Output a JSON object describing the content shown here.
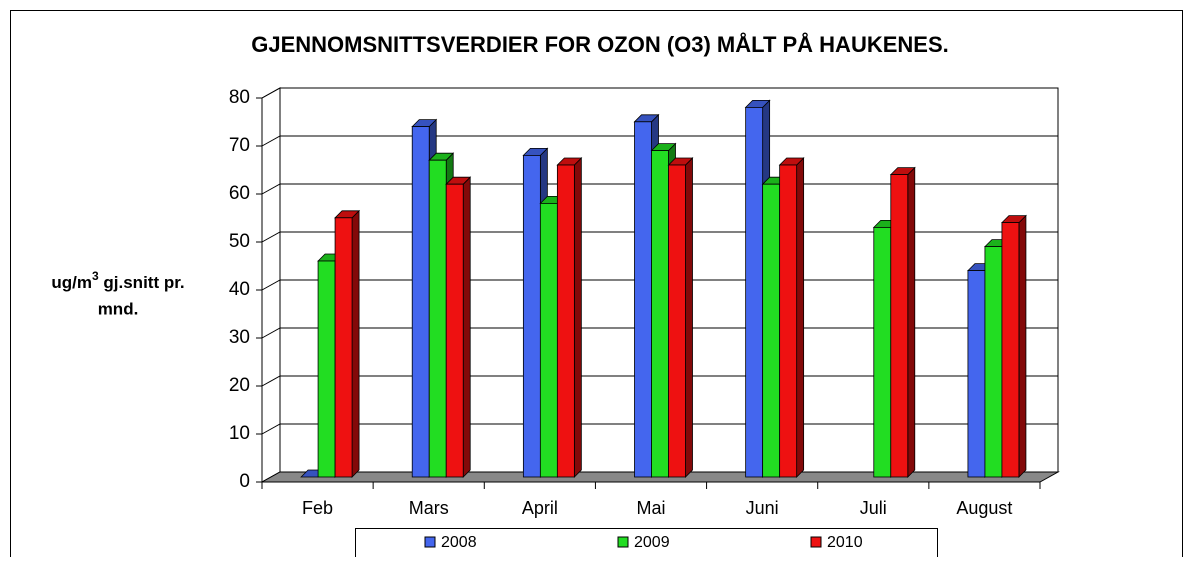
{
  "chart_data": {
    "type": "bar3d",
    "title": "GJENNOMSNITTSVERDIER FOR OZON (O3) MÅLT PÅ HAUKENES.",
    "y_label": {
      "main": "ug/m",
      "superscript": "3",
      "rest": " gj.snitt pr.",
      "line2": "mnd."
    },
    "categories": [
      "Feb",
      "Mars",
      "April",
      "Mai",
      "Juni",
      "Juli",
      "August"
    ],
    "series": [
      {
        "name": "2008",
        "color": "#4466ee",
        "values": [
          0,
          73,
          67,
          74,
          77,
          null,
          43
        ]
      },
      {
        "name": "2009",
        "color": "#22dd22",
        "values": [
          45,
          66,
          57,
          68,
          61,
          52,
          48
        ]
      },
      {
        "name": "2010",
        "color": "#ee1111",
        "values": [
          54,
          61,
          65,
          65,
          65,
          63,
          53
        ]
      }
    ],
    "ylim": [
      0,
      80
    ],
    "yticks": [
      0,
      10,
      20,
      30,
      40,
      50,
      60,
      70,
      80
    ],
    "grid": true,
    "legend": "bottom"
  }
}
